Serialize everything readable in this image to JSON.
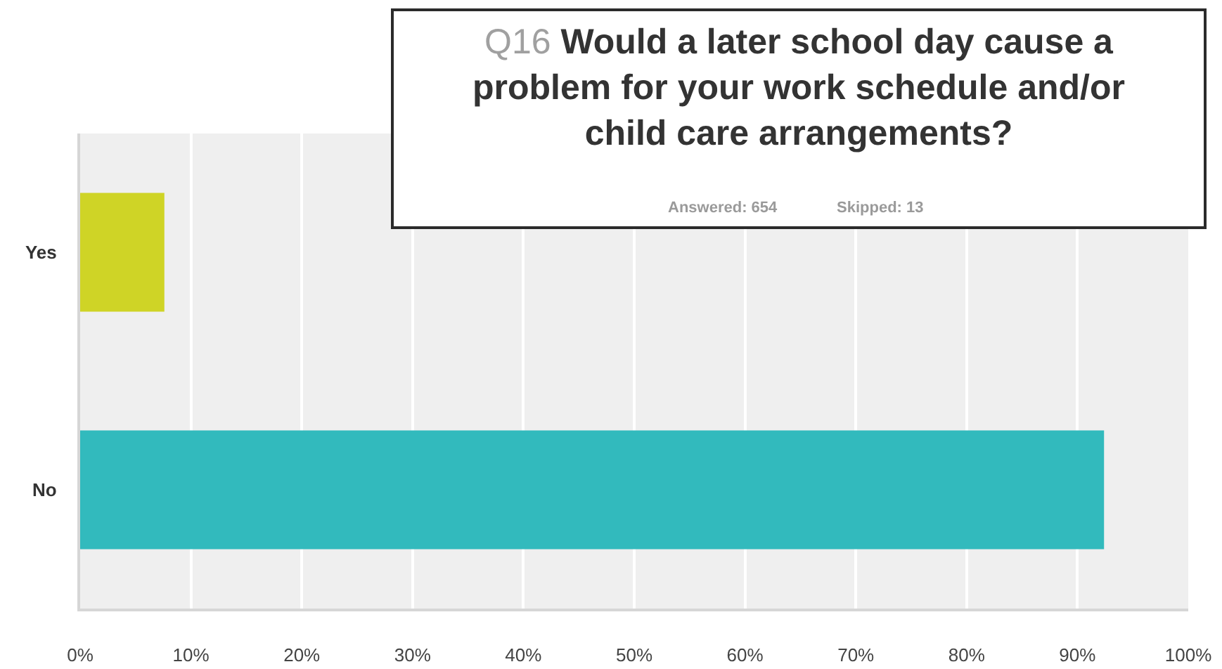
{
  "chart_data": {
    "type": "bar",
    "orientation": "horizontal",
    "title": "Q16 Would a later school day cause a problem for your work schedule and/or child care arrangements?",
    "annotations": [
      "Answered: 654",
      "Skipped: 13"
    ],
    "categories": [
      "Yes",
      "No"
    ],
    "values": [
      7.6,
      92.4
    ],
    "colors": [
      "#cfd426",
      "#32babd"
    ],
    "xlim": [
      0,
      100
    ],
    "xticks": [
      {
        "value": 0,
        "label": "0%"
      },
      {
        "value": 10,
        "label": "10%"
      },
      {
        "value": 20,
        "label": "20%"
      },
      {
        "value": 30,
        "label": "30%"
      },
      {
        "value": 40,
        "label": "40%"
      },
      {
        "value": 50,
        "label": "50%"
      },
      {
        "value": 60,
        "label": "60%"
      },
      {
        "value": 70,
        "label": "70%"
      },
      {
        "value": 80,
        "label": "80%"
      },
      {
        "value": 90,
        "label": "90%"
      },
      {
        "value": 100,
        "label": "100%"
      }
    ],
    "grid": "x"
  }
}
